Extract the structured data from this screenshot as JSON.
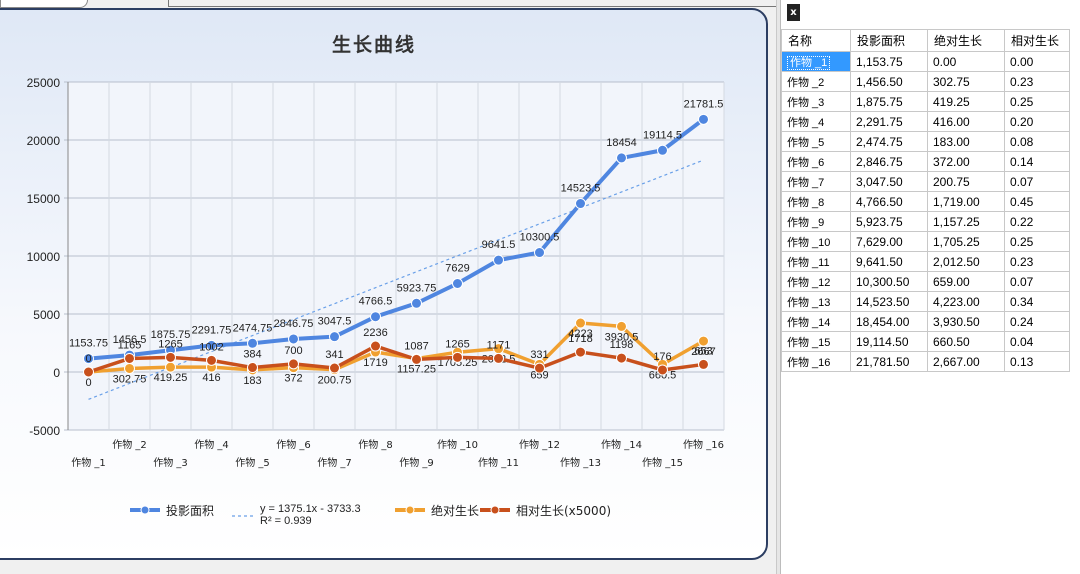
{
  "chart_data": {
    "type": "line",
    "title": "生长曲线",
    "categories": [
      "作物 _1",
      "作物 _2",
      "作物 _3",
      "作物 _4",
      "作物 _5",
      "作物 _6",
      "作物 _7",
      "作物 _8",
      "作物 _9",
      "作物 _10",
      "作物 _11",
      "作物 _12",
      "作物 _13",
      "作物 _14",
      "作物 _15",
      "作物 _16"
    ],
    "ylim": [
      -5000,
      25000
    ],
    "yticks": [
      "25000",
      "20000",
      "15000",
      "10000",
      "5000",
      "0",
      "-5000"
    ],
    "grid": true,
    "legend_position": "bottom",
    "series": [
      {
        "name": "投影面积",
        "color": "#4f86e0",
        "values": [
          1153.75,
          1456.5,
          1875.75,
          2291.75,
          2474.75,
          2846.75,
          3047.5,
          4766.5,
          5923.75,
          7629,
          9641.5,
          10300.5,
          14523.5,
          18454,
          19114.5,
          21781.5
        ],
        "labels": [
          "1153.75",
          "1456.5",
          "1875.75",
          "2291.75",
          "2474.75",
          "2846.75",
          "3047.5",
          "4766.5",
          "5923.75",
          "7629",
          "9641.5",
          "10300.5",
          "14523.5",
          "18454",
          "19114.5",
          "21781.5"
        ]
      },
      {
        "name": "绝对生长",
        "color": "#f0a030",
        "values": [
          0,
          302.75,
          419.25,
          416,
          183,
          372,
          200.75,
          1719,
          1157.25,
          1705.25,
          2012.5,
          659,
          4223,
          3930.5,
          660.5,
          2667
        ],
        "labels": [
          "0",
          "302.75",
          "419.25",
          "416",
          "183",
          "372",
          "200.75",
          "1719",
          "1157.25",
          "1705.25",
          "2012.5",
          "659",
          "4223",
          "3930.5",
          "660.5",
          "2667"
        ]
      },
      {
        "name": "相对生长(x5000)",
        "color": "#c8501c",
        "values": [
          0,
          1165,
          1265,
          1002,
          384,
          700,
          341,
          2236,
          1087,
          1265,
          1171,
          331,
          1718,
          1198,
          176,
          653
        ],
        "labels": [
          "0",
          "1165",
          "1265",
          "1002",
          "384",
          "700",
          "341",
          "2236",
          "1087",
          "1265",
          "1171",
          "331",
          "1718",
          "1198",
          "176",
          "653"
        ]
      }
    ],
    "trendline": {
      "equation": "y = 1375.1x - 3733.3",
      "r2": "R² = 0.939",
      "color": "#6aa0e8"
    }
  },
  "legend": {
    "items": [
      "投影面积",
      "y = 1375.1x - 3733.3",
      "R² = 0.939",
      "绝对生长",
      "相对生长(x5000)"
    ]
  },
  "table": {
    "headers": [
      "名称",
      "投影面积",
      "绝对生长",
      "相对生长"
    ],
    "rows": [
      [
        "作物 _1",
        "1,153.75",
        "0.00",
        "0.00"
      ],
      [
        "作物 _2",
        "1,456.50",
        "302.75",
        "0.23"
      ],
      [
        "作物 _3",
        "1,875.75",
        "419.25",
        "0.25"
      ],
      [
        "作物 _4",
        "2,291.75",
        "416.00",
        "0.20"
      ],
      [
        "作物 _5",
        "2,474.75",
        "183.00",
        "0.08"
      ],
      [
        "作物 _6",
        "2,846.75",
        "372.00",
        "0.14"
      ],
      [
        "作物 _7",
        "3,047.50",
        "200.75",
        "0.07"
      ],
      [
        "作物 _8",
        "4,766.50",
        "1,719.00",
        "0.45"
      ],
      [
        "作物 _9",
        "5,923.75",
        "1,157.25",
        "0.22"
      ],
      [
        "作物 _10",
        "7,629.00",
        "1,705.25",
        "0.25"
      ],
      [
        "作物 _11",
        "9,641.50",
        "2,012.50",
        "0.23"
      ],
      [
        "作物 _12",
        "10,300.50",
        "659.00",
        "0.07"
      ],
      [
        "作物 _13",
        "14,523.50",
        "4,223.00",
        "0.34"
      ],
      [
        "作物 _14",
        "18,454.00",
        "3,930.50",
        "0.24"
      ],
      [
        "作物 _15",
        "19,114.50",
        "660.50",
        "0.04"
      ],
      [
        "作物 _16",
        "21,781.50",
        "2,667.00",
        "0.13"
      ]
    ]
  }
}
